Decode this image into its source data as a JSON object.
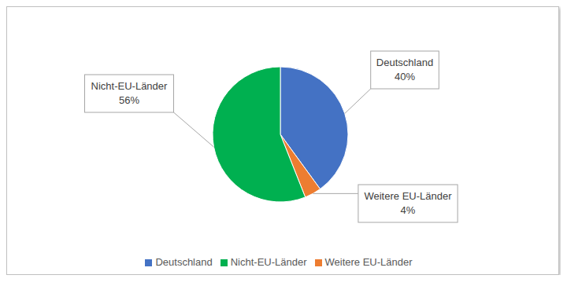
{
  "chart_data": {
    "type": "pie",
    "categories": [
      "Deutschland",
      "Weitere EU-Länder",
      "Nicht-EU-Länder"
    ],
    "values": [
      40,
      4,
      56
    ],
    "value_labels": [
      "40%",
      "4%",
      "56%"
    ],
    "colors": [
      "#4472c4",
      "#ed7d31",
      "#00b050"
    ],
    "data_labels": true,
    "legend": "bottom"
  }
}
